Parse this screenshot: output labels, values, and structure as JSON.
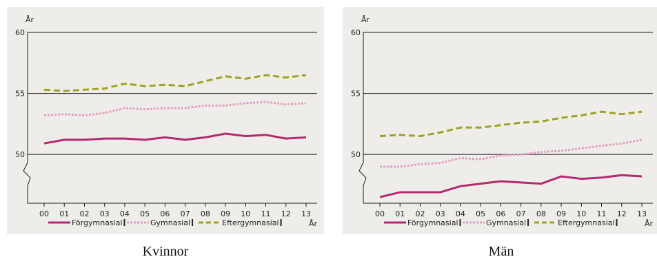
{
  "chart_data": [
    {
      "type": "line",
      "panel_label": "Kvinnor",
      "ylabel": "År",
      "xlabel": "År",
      "x_tick_labels": [
        "00",
        "01",
        "02",
        "03",
        "04",
        "05",
        "06",
        "07",
        "08",
        "09",
        "10",
        "11",
        "12",
        "13"
      ],
      "y_ticks": [
        50,
        55,
        60
      ],
      "ylim": [
        46.0,
        60
      ],
      "axis_break": true,
      "grid": "horizontal at 50, 55, 60",
      "legend_position": "bottom",
      "series": [
        {
          "name": "Förgymnasial",
          "color": "#b5296e",
          "style": "solid",
          "values": [
            50.9,
            51.2,
            51.2,
            51.3,
            51.3,
            51.2,
            51.4,
            51.2,
            51.4,
            51.7,
            51.5,
            51.6,
            51.3,
            51.4
          ]
        },
        {
          "name": "Gymnasial",
          "color": "#e3a0c0",
          "style": "double-dashed",
          "values": [
            53.2,
            53.3,
            53.2,
            53.4,
            53.8,
            53.7,
            53.8,
            53.8,
            54.0,
            54.0,
            54.2,
            54.3,
            54.1,
            54.2
          ]
        },
        {
          "name": "Eftergymnasial",
          "color": "#9ea31e",
          "style": "dashed",
          "values": [
            55.3,
            55.2,
            55.3,
            55.4,
            55.8,
            55.6,
            55.7,
            55.6,
            56.0,
            56.4,
            56.2,
            56.5,
            56.3,
            56.5
          ]
        }
      ]
    },
    {
      "type": "line",
      "panel_label": "Män",
      "ylabel": "År",
      "xlabel": "År",
      "x_tick_labels": [
        "00",
        "01",
        "02",
        "03",
        "04",
        "05",
        "06",
        "07",
        "08",
        "09",
        "10",
        "11",
        "12",
        "13"
      ],
      "y_ticks": [
        50,
        55,
        60
      ],
      "ylim": [
        46.0,
        60
      ],
      "axis_break": true,
      "grid": "horizontal at 50, 55, 60",
      "legend_position": "bottom",
      "series": [
        {
          "name": "Förgymnasial",
          "color": "#b5296e",
          "style": "solid",
          "values": [
            46.5,
            46.9,
            46.9,
            46.9,
            47.4,
            47.6,
            47.8,
            47.7,
            47.6,
            48.2,
            48.0,
            48.1,
            48.3,
            48.2
          ]
        },
        {
          "name": "Gymnasial",
          "color": "#e3a0c0",
          "style": "double-dashed",
          "values": [
            49.0,
            49.0,
            49.2,
            49.3,
            49.7,
            49.6,
            49.9,
            50.0,
            50.2,
            50.3,
            50.5,
            50.7,
            50.9,
            51.2
          ]
        },
        {
          "name": "Eftergymnasial",
          "color": "#9ea31e",
          "style": "dashed",
          "values": [
            51.5,
            51.6,
            51.5,
            51.8,
            52.2,
            52.2,
            52.4,
            52.6,
            52.7,
            53.0,
            53.2,
            53.5,
            53.3,
            53.5
          ]
        }
      ]
    }
  ]
}
